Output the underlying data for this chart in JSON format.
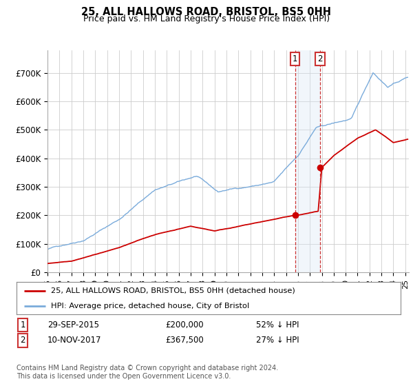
{
  "title": "25, ALL HALLOWS ROAD, BRISTOL, BS5 0HH",
  "subtitle": "Price paid vs. HM Land Registry's House Price Index (HPI)",
  "hpi_color": "#7aabdb",
  "price_color": "#cc0000",
  "shade_color": "#d8e8f5",
  "annotation1_year": 2015.75,
  "annotation2_year": 2017.85,
  "annotation1_price": 200000,
  "annotation2_price": 367500,
  "legend_label1": "25, ALL HALLOWS ROAD, BRISTOL, BS5 0HH (detached house)",
  "legend_label2": "HPI: Average price, detached house, City of Bristol",
  "footnote": "Contains HM Land Registry data © Crown copyright and database right 2024.\nThis data is licensed under the Open Government Licence v3.0.",
  "background_color": "#ffffff",
  "yticks": [
    0,
    100000,
    200000,
    300000,
    400000,
    500000,
    600000,
    700000
  ],
  "ytick_labels": [
    "£0",
    "£100K",
    "£200K",
    "£300K",
    "£400K",
    "£500K",
    "£600K",
    "£700K"
  ],
  "ylim": [
    0,
    780000
  ],
  "xlim_start": 1995,
  "xlim_end": 2025.3
}
